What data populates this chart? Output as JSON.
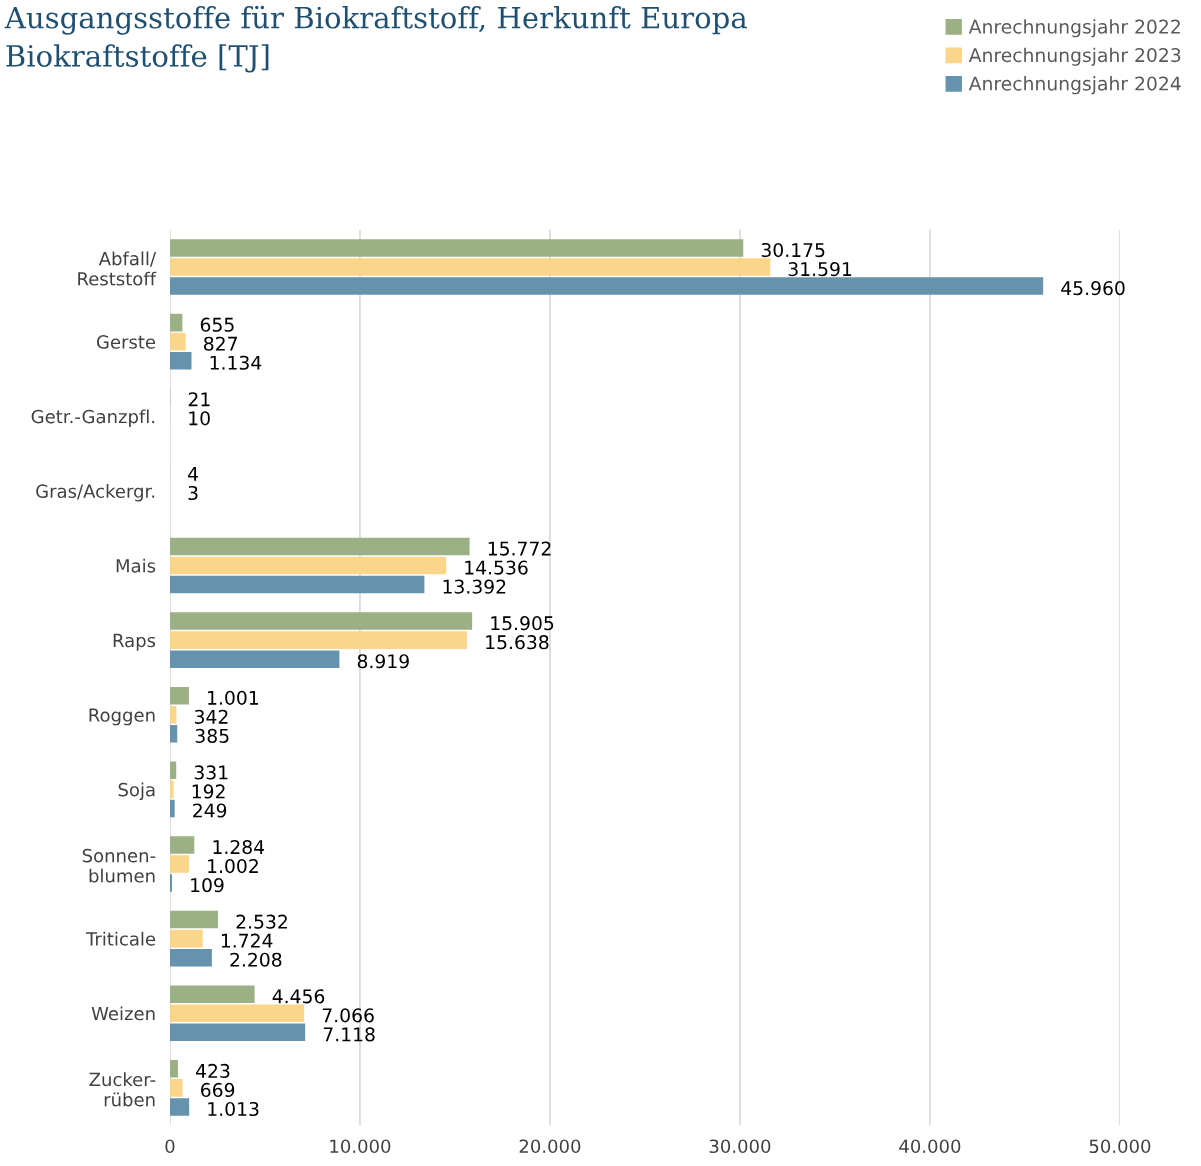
{
  "chart_data": {
    "type": "bar",
    "orientation": "horizontal",
    "title": "Ausgangsstoffe für Biokraftstoff, Herkunft Europa",
    "subtitle": "Biokraftstoffe [TJ]",
    "categories": [
      "Abfall/\nReststoff",
      "Gerste",
      "Getr.-Ganzpfl.",
      "Gras/Ackergr.",
      "Mais",
      "Raps",
      "Roggen",
      "Soja",
      "Sonnen-\nblumen",
      "Triticale",
      "Weizen",
      "Zucker-\nrüben"
    ],
    "series": [
      {
        "name": "Anrechnungsjahr 2022",
        "color": "#9bb185",
        "values": [
          30175,
          655,
          21,
          4,
          15772,
          15905,
          1001,
          331,
          1284,
          2532,
          4456,
          423
        ],
        "value_labels": [
          "30.175",
          "655",
          "21",
          "4",
          "15.772",
          "15.905",
          "1.001",
          "331",
          "1.284",
          "2.532",
          "4.456",
          "423"
        ]
      },
      {
        "name": "Anrechnungsjahr 2023",
        "color": "#fad58a",
        "values": [
          31591,
          827,
          10,
          3,
          14536,
          15638,
          342,
          192,
          1002,
          1724,
          7066,
          669
        ],
        "value_labels": [
          "31.591",
          "827",
          "10",
          "3",
          "14.536",
          "15.638",
          "342",
          "192",
          "1.002",
          "1.724",
          "7.066",
          "669"
        ]
      },
      {
        "name": "Anrechnungsjahr 2024",
        "color": "#6592ad",
        "values": [
          45960,
          1134,
          null,
          null,
          13392,
          8919,
          385,
          249,
          109,
          2208,
          7118,
          1013
        ],
        "value_labels": [
          "45.960",
          "1.134",
          null,
          null,
          "13.392",
          "8.919",
          "385",
          "249",
          "109",
          "2.208",
          "7.118",
          "1.013"
        ]
      }
    ],
    "xlim": [
      0,
      50000
    ],
    "xticks": [
      {
        "value": 0,
        "label": "0"
      },
      {
        "value": 10000,
        "label": "10.000"
      },
      {
        "value": 20000,
        "label": "20.000"
      },
      {
        "value": 30000,
        "label": "30.000"
      },
      {
        "value": 40000,
        "label": "40.000"
      },
      {
        "value": 50000,
        "label": "50.000"
      }
    ],
    "grid": "x",
    "legend": "top right"
  }
}
